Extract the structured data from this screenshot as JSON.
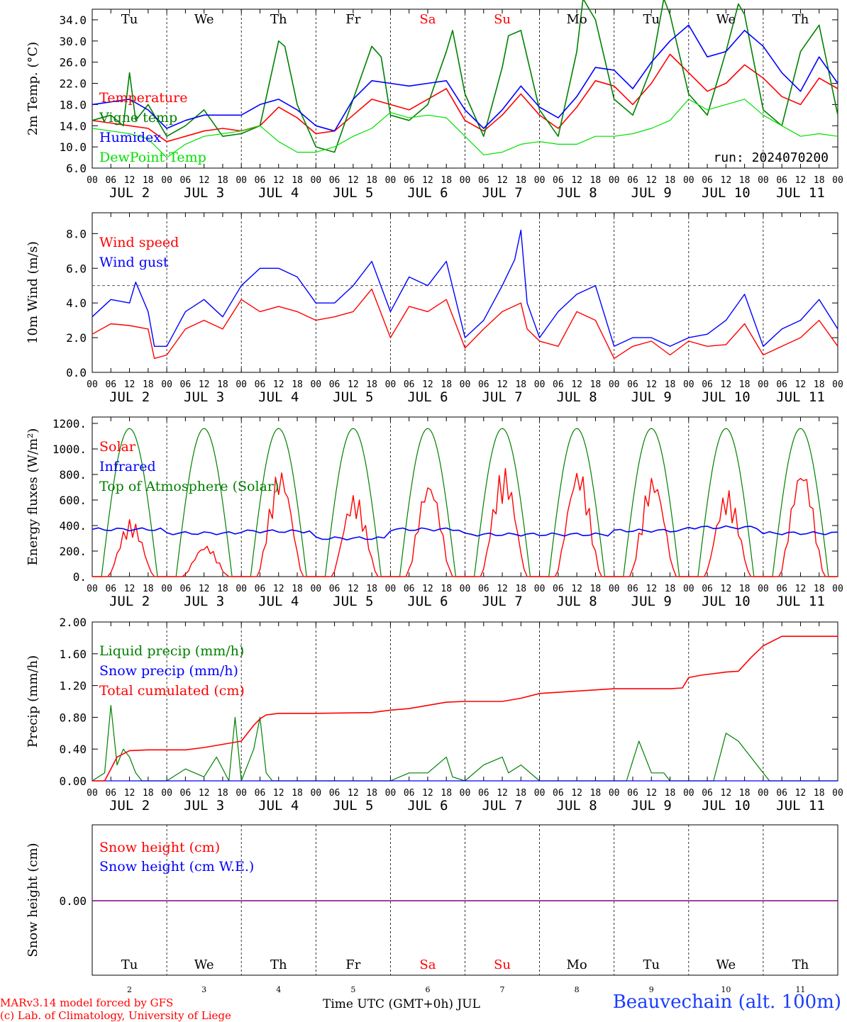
{
  "days": [
    {
      "wd": "Tu",
      "num": "2",
      "weekend": false
    },
    {
      "wd": "We",
      "num": "3",
      "weekend": false
    },
    {
      "wd": "Th",
      "num": "4",
      "weekend": false
    },
    {
      "wd": "Fr",
      "num": "5",
      "weekend": false
    },
    {
      "wd": "Sa",
      "num": "6",
      "weekend": true
    },
    {
      "wd": "Su",
      "num": "7",
      "weekend": true
    },
    {
      "wd": "Mo",
      "num": "8",
      "weekend": false
    },
    {
      "wd": "Tu",
      "num": "9",
      "weekend": false
    },
    {
      "wd": "We",
      "num": "10",
      "weekend": false
    },
    {
      "wd": "Th",
      "num": "11",
      "weekend": false
    }
  ],
  "hour_ticks": [
    "00",
    "06",
    "12",
    "18"
  ],
  "last_hour_tick": "00",
  "date_labels": [
    "JUL  2",
    "JUL  3",
    "JUL  4",
    "JUL  5",
    "JUL  6",
    "JUL  7",
    "JUL  8",
    "JUL  9",
    "JUL 10",
    "JUL 11"
  ],
  "colors": {
    "red": "#ff0000",
    "blue": "#0000ff",
    "green": "#008000",
    "lime": "#00e000",
    "purple": "#800080"
  },
  "footer": {
    "model": "MARv3.14 model forced by GFS",
    "copyright": "(c) Lab. of Climatology, University of Liege",
    "xlabel": "Time UTC (GMT+0h) JUL",
    "station": "Beauvechain (alt. 100m)"
  },
  "chart_data": [
    {
      "id": "temperature",
      "type": "line",
      "ylabel": "2m Temp. (°C)",
      "ylim": [
        6,
        36
      ],
      "yticks": [
        "6.0",
        "10.0",
        "14.0",
        "18.0",
        "22.0",
        "26.0",
        "30.0",
        "34.0"
      ],
      "ytick_values": [
        6,
        10,
        14,
        18,
        22,
        26,
        30,
        34
      ],
      "annotation": "run: 2024070200",
      "x_unit": "hours since JUL 2 00 UTC",
      "series": [
        {
          "name": "Temperature",
          "color": "#ff0000",
          "x": [
            0,
            6,
            12,
            18,
            24,
            30,
            36,
            42,
            48,
            54,
            60,
            66,
            72,
            78,
            84,
            90,
            96,
            102,
            108,
            114,
            120,
            126,
            132,
            138,
            144,
            150,
            156,
            162,
            168,
            174,
            180,
            186,
            192,
            198,
            204,
            210,
            216,
            222,
            228,
            234,
            240
          ],
          "values": [
            15,
            14.5,
            14,
            13.5,
            11,
            12,
            13,
            13.5,
            13,
            14,
            17.5,
            15.5,
            12.5,
            13,
            16,
            19,
            18,
            17,
            19,
            21,
            15,
            13,
            16,
            20,
            16,
            13.5,
            17.5,
            22.5,
            21.5,
            18,
            22,
            27.5,
            24,
            20.5,
            22,
            25.5,
            23,
            19.5,
            18,
            23,
            21
          ]
        },
        {
          "name": "Vigne temp",
          "color": "#008000",
          "x": [
            0,
            6,
            10,
            12,
            14,
            18,
            24,
            30,
            36,
            42,
            48,
            54,
            60,
            62,
            66,
            72,
            78,
            84,
            90,
            93,
            96,
            102,
            108,
            114,
            116,
            120,
            126,
            132,
            134,
            138,
            144,
            150,
            156,
            158,
            162,
            168,
            174,
            180,
            184,
            186,
            192,
            198,
            204,
            208,
            210,
            216,
            222,
            228,
            234,
            240
          ],
          "values": [
            15,
            16,
            14,
            24,
            15,
            18,
            12,
            14,
            17,
            12,
            12.5,
            14,
            30,
            29,
            18,
            10,
            9,
            19,
            29,
            27,
            16,
            15,
            18,
            28,
            32,
            20,
            12,
            25,
            31,
            32,
            17,
            12,
            28,
            38,
            34,
            19,
            16,
            25,
            38,
            35,
            20,
            16,
            28,
            37,
            35,
            17,
            14,
            28,
            33,
            16
          ]
        },
        {
          "name": "Humidex",
          "color": "#0000ff",
          "x": [
            0,
            6,
            12,
            18,
            24,
            30,
            36,
            42,
            48,
            54,
            60,
            66,
            72,
            78,
            84,
            90,
            96,
            102,
            108,
            114,
            120,
            126,
            132,
            138,
            144,
            150,
            156,
            162,
            168,
            174,
            180,
            186,
            192,
            198,
            204,
            210,
            216,
            222,
            228,
            234,
            240
          ],
          "values": [
            18,
            18.5,
            19,
            17,
            13.5,
            15,
            16,
            16,
            16,
            18,
            19,
            17,
            14,
            13,
            19,
            22.5,
            22,
            21.5,
            22,
            22.5,
            17,
            13.5,
            17,
            21.5,
            17.5,
            15.5,
            19.5,
            25,
            24.5,
            21,
            26,
            30,
            33,
            27,
            28,
            32,
            29,
            24,
            20.5,
            27,
            22
          ]
        },
        {
          "name": "DewPoint Temp",
          "color": "#00e000",
          "x": [
            0,
            6,
            12,
            18,
            24,
            30,
            36,
            42,
            48,
            54,
            60,
            66,
            72,
            78,
            84,
            90,
            96,
            102,
            108,
            114,
            120,
            126,
            132,
            138,
            144,
            150,
            156,
            162,
            168,
            174,
            180,
            186,
            192,
            198,
            204,
            210,
            216,
            222,
            228,
            234,
            240
          ],
          "values": [
            13.5,
            13,
            12.5,
            11.5,
            8,
            10.5,
            12,
            12.5,
            13,
            14,
            11,
            9,
            9,
            10,
            12,
            13.5,
            16.5,
            15.5,
            16,
            15.5,
            12,
            8.5,
            9,
            10.5,
            11,
            10.5,
            10.5,
            12,
            12,
            12.5,
            13.5,
            15,
            19,
            17,
            18,
            19,
            16,
            14,
            12,
            12.5,
            12
          ]
        }
      ]
    },
    {
      "id": "wind",
      "type": "line",
      "ylabel": "10m Wind (m/s)",
      "ylim": [
        0,
        9.2
      ],
      "yticks": [
        "0.0",
        "2.0",
        "4.0",
        "6.0",
        "8.0"
      ],
      "ytick_values": [
        0,
        2,
        4,
        6,
        8
      ],
      "reference_line": 5,
      "series": [
        {
          "name": "Wind speed",
          "color": "#ff0000",
          "x": [
            0,
            6,
            12,
            18,
            20,
            24,
            30,
            36,
            42,
            48,
            54,
            60,
            66,
            72,
            78,
            84,
            90,
            96,
            102,
            108,
            114,
            120,
            126,
            132,
            138,
            140,
            144,
            150,
            156,
            162,
            168,
            174,
            180,
            186,
            192,
            198,
            204,
            210,
            216,
            222,
            228,
            234,
            240
          ],
          "values": [
            2.2,
            2.8,
            2.7,
            2.5,
            0.8,
            1,
            2.5,
            3,
            2.5,
            4.2,
            3.5,
            3.8,
            3.5,
            3,
            3.2,
            3.5,
            4.8,
            2,
            3.8,
            3.5,
            4.2,
            1.4,
            2.5,
            3.5,
            4,
            2.5,
            1.8,
            1.5,
            3.5,
            3,
            0.8,
            1.5,
            1.8,
            1,
            1.8,
            1.5,
            1.6,
            2.8,
            1,
            1.5,
            2,
            3,
            1.5
          ]
        },
        {
          "name": "Wind gust",
          "color": "#0000ff",
          "x": [
            0,
            6,
            12,
            14,
            18,
            20,
            24,
            30,
            36,
            42,
            48,
            54,
            60,
            66,
            72,
            78,
            84,
            90,
            96,
            102,
            108,
            114,
            120,
            126,
            132,
            136,
            138,
            140,
            144,
            150,
            156,
            162,
            168,
            174,
            180,
            186,
            192,
            198,
            204,
            210,
            216,
            222,
            228,
            234,
            240
          ],
          "values": [
            3.2,
            4.2,
            4,
            5.2,
            3.5,
            1.5,
            1.5,
            3.5,
            4.2,
            3.2,
            5,
            6,
            6,
            5.5,
            4,
            4,
            5,
            6.4,
            3.5,
            5.5,
            5,
            6.4,
            2,
            3,
            5,
            6.5,
            8.2,
            4,
            2,
            3.5,
            4.5,
            5,
            1.5,
            2,
            2,
            1.5,
            2,
            2.2,
            3,
            4.5,
            1.5,
            2.5,
            3,
            4.2,
            2.5
          ]
        }
      ]
    },
    {
      "id": "energy",
      "type": "line",
      "ylabel": "Energy fluxes (W/m²)",
      "ylim": [
        0,
        1250
      ],
      "yticks": [
        "0.",
        "200.",
        "400.",
        "600.",
        "800.",
        "1000.",
        "1200."
      ],
      "ytick_values": [
        0,
        200,
        400,
        600,
        800,
        1000,
        1200
      ],
      "series": [
        {
          "name": "Solar",
          "color": "#ff0000",
          "peak_hour": 13,
          "daily_peak": [
            450,
            250,
            850,
            650,
            760,
            860,
            860,
            800,
            680,
            870
          ]
        },
        {
          "name": "Infrared",
          "color": "#0000ff",
          "daily_mean": [
            370,
            340,
            355,
            300,
            370,
            330,
            330,
            360,
            385,
            340
          ]
        },
        {
          "name": "Top of Atmosphere (Solar)",
          "color": "#008000",
          "peak_hour": 12,
          "daily_peak": [
            1160,
            1160,
            1160,
            1160,
            1160,
            1160,
            1160,
            1160,
            1160,
            1160
          ],
          "sunrise_hour": 3,
          "sunset_hour": 21
        }
      ]
    },
    {
      "id": "precip",
      "type": "line",
      "ylabel": "Precip (mm/h)",
      "ylim": [
        0,
        2
      ],
      "yticks": [
        "0.00",
        "0.40",
        "0.80",
        "1.20",
        "1.60",
        "2.00"
      ],
      "ytick_values": [
        0,
        0.4,
        0.8,
        1.2,
        1.6,
        2.0
      ],
      "series": [
        {
          "name": "Liquid precip (mm/h)",
          "color": "#008000",
          "x": [
            0,
            4,
            6,
            8,
            10,
            12,
            14,
            16,
            18,
            20,
            24,
            30,
            36,
            40,
            44,
            46,
            48,
            52,
            54,
            56,
            58,
            60,
            62,
            66,
            72,
            96,
            102,
            108,
            114,
            116,
            120,
            126,
            132,
            134,
            138,
            144,
            172,
            176,
            178,
            180,
            184,
            186,
            190,
            192,
            200,
            204,
            206,
            208,
            210,
            212,
            214,
            216,
            218,
            222,
            240
          ],
          "values": [
            0,
            0.1,
            0.95,
            0.2,
            0.4,
            0.3,
            0.1,
            0,
            0,
            0,
            0,
            0.15,
            0.05,
            0.3,
            0,
            0.8,
            0,
            0.4,
            0.8,
            0.1,
            0,
            0,
            0,
            0,
            0,
            0,
            0.1,
            0.1,
            0.3,
            0.05,
            0,
            0.2,
            0.3,
            0.1,
            0.2,
            0,
            0,
            0.5,
            0.3,
            0.1,
            0.1,
            0,
            0,
            0,
            0,
            0.6,
            0.55,
            0.5,
            0.4,
            0.3,
            0.2,
            0.1,
            0,
            0,
            0
          ]
        },
        {
          "name": "Snow precip (mm/h)",
          "color": "#0000ff",
          "x": [
            0,
            240
          ],
          "values": [
            0,
            0
          ]
        },
        {
          "name": "Total cumulated (cm)",
          "color": "#ff0000",
          "x": [
            0,
            4,
            6,
            8,
            12,
            18,
            24,
            30,
            36,
            42,
            48,
            50,
            52,
            54,
            56,
            60,
            66,
            72,
            90,
            96,
            102,
            108,
            114,
            120,
            132,
            138,
            144,
            168,
            180,
            186,
            190,
            192,
            196,
            204,
            208,
            212,
            216,
            222,
            240
          ],
          "values": [
            0,
            0,
            0.15,
            0.3,
            0.38,
            0.39,
            0.39,
            0.39,
            0.42,
            0.46,
            0.5,
            0.6,
            0.7,
            0.78,
            0.83,
            0.85,
            0.85,
            0.85,
            0.86,
            0.89,
            0.91,
            0.95,
            0.99,
            1.0,
            1.0,
            1.04,
            1.1,
            1.16,
            1.16,
            1.16,
            1.17,
            1.3,
            1.33,
            1.37,
            1.38,
            1.55,
            1.7,
            1.82,
            1.82
          ]
        }
      ]
    },
    {
      "id": "snow",
      "type": "line",
      "ylabel": "Snow height (cm)",
      "yticks": [
        "0.00"
      ],
      "series": [
        {
          "name": "Snow height (cm)",
          "color": "#ff0000",
          "x": [
            0,
            240
          ],
          "values": [
            0,
            0
          ]
        },
        {
          "name": "Snow height (cm W.E.)",
          "color": "#0000ff",
          "x": [
            0,
            240
          ],
          "values": [
            0,
            0
          ]
        }
      ]
    }
  ]
}
